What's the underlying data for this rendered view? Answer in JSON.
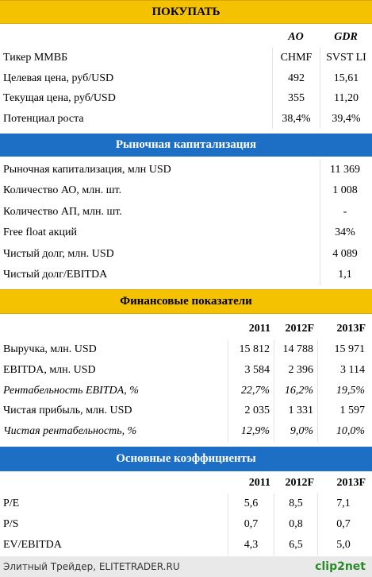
{
  "header": {
    "title": "ПОКУПАТЬ"
  },
  "recommendation": {
    "columns": [
      "AO",
      "GDR"
    ],
    "rows": [
      [
        "Тикер ММВБ",
        "CHMF",
        "SVST LI"
      ],
      [
        "Целевая цена, руб/USD",
        "492",
        "15,61"
      ],
      [
        "Текущая цена, руб/USD",
        "355",
        "11,20"
      ],
      [
        "Потенциал роста",
        "38,4%",
        "39,4%"
      ]
    ]
  },
  "market_cap": {
    "title": "Рыночная капитализация",
    "rows": [
      [
        "Рыночная капитализация, млн USD",
        "11 369"
      ],
      [
        "Количество АО, млн. шт.",
        "1 008"
      ],
      [
        "Количество АП, млн. шт.",
        "-"
      ],
      [
        "Free float акций",
        "34%"
      ],
      [
        "Чистый долг, млн. USD",
        "4 089"
      ],
      [
        "Чистый долг/EBITDA",
        "1,1"
      ]
    ]
  },
  "financials": {
    "title": "Финансовые показатели",
    "columns": [
      "2011",
      "2012F",
      "2013F"
    ],
    "rows": [
      [
        "Выручка, млн. USD",
        "15 812",
        "14 788",
        "15 971"
      ],
      [
        "EBITDA, млн. USD",
        "3 584",
        "2 396",
        "3 114"
      ],
      [
        "Рентабельность EBITDA, %",
        "22,7%",
        "16,2%",
        "19,5%"
      ],
      [
        "Чистая прибыль, млн. USD",
        "2 035",
        "1 331",
        "1 597"
      ],
      [
        "Чистая рентабельность, %",
        "12,9%",
        "9,0%",
        "10,0%"
      ]
    ]
  },
  "ratios": {
    "title": "Основные коэффициенты",
    "columns": [
      "2011",
      "2012F",
      "2013F"
    ],
    "rows": [
      [
        "P/E",
        "5,6",
        "8,5",
        "7,1"
      ],
      [
        "P/S",
        "0,7",
        "0,8",
        "0,7"
      ],
      [
        "EV/EBITDA",
        "4,3",
        "6,5",
        "5,0"
      ]
    ]
  },
  "footer": {
    "source": "Элитный Трейдер, ELITETRADER.RU",
    "logo": "clip2net"
  }
}
